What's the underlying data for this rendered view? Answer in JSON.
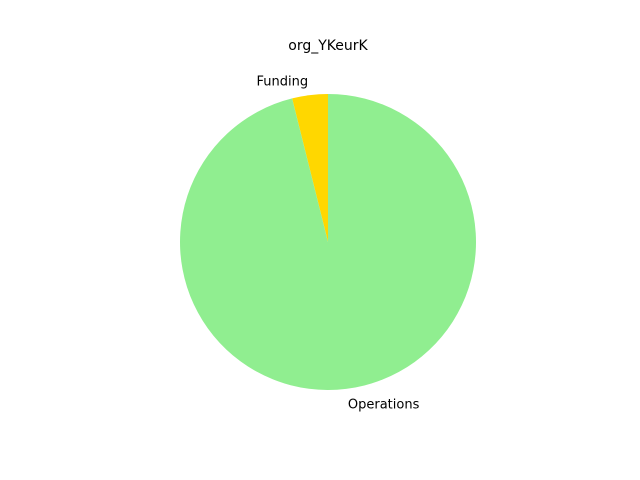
{
  "chart_data": {
    "type": "pie",
    "title": "org_YKeurK",
    "slices": [
      {
        "label": "Funding",
        "value": 3.9,
        "color": "#ffd700"
      },
      {
        "label": "Operations",
        "value": 96.1,
        "color": "#90ee90"
      }
    ],
    "start_angle_deg": 90,
    "direction": "counterclockwise",
    "legend": "none"
  }
}
